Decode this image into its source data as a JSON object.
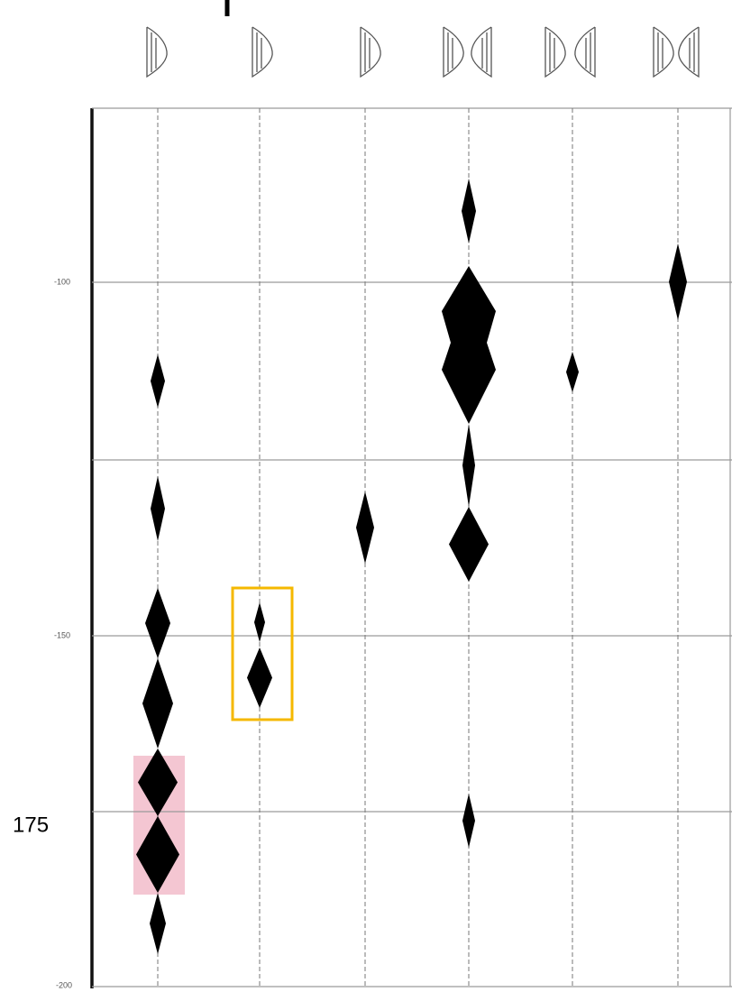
{
  "axis_labels": [
    "-100",
    "-150",
    "-200"
  ],
  "annotation": "175"
}
